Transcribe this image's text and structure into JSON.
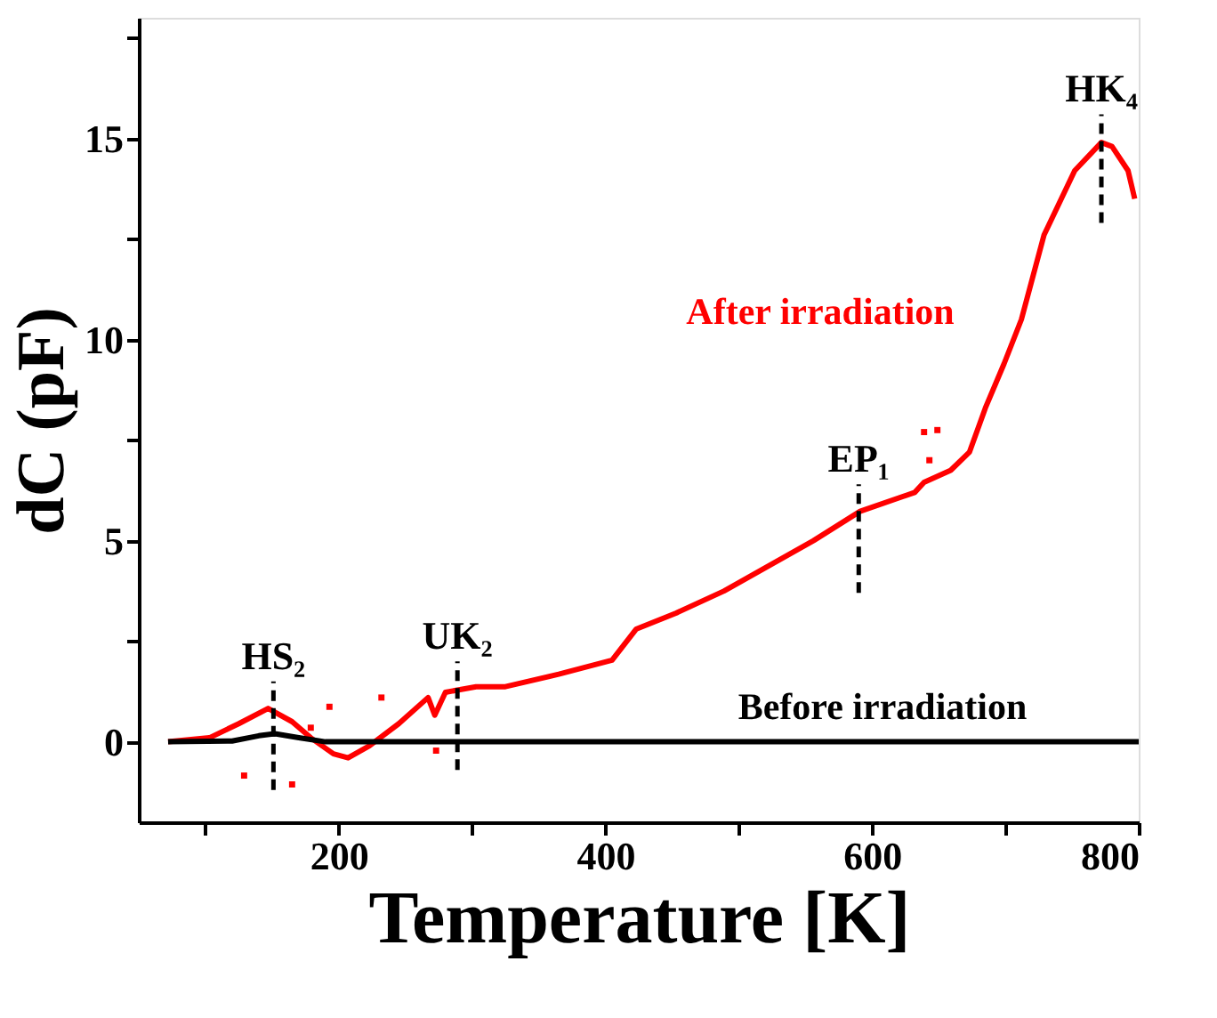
{
  "chart_data": {
    "type": "line",
    "xlabel": "Temperature [K]",
    "ylabel": "dC (pF)",
    "xlim": [
      50,
      800
    ],
    "xticks": [
      {
        "value": 100,
        "label": null
      },
      200,
      {
        "value": 300,
        "label": null
      },
      400,
      {
        "value": 500,
        "label": null
      },
      600,
      {
        "value": 700,
        "label": null
      },
      800
    ],
    "ylim": [
      -2,
      18
    ],
    "yticks": [
      0,
      {
        "value": 2.5,
        "label": null
      },
      5,
      {
        "value": 7.5,
        "label": null
      },
      10,
      {
        "value": 12.5,
        "label": null
      },
      15,
      {
        "value": 17.5,
        "label": null
      }
    ],
    "grid": false,
    "marker": "none",
    "line_style": "solid",
    "series": [
      {
        "name": "After irradiation",
        "color": "#ff0000",
        "x": [
          72,
          103,
          125,
          147,
          165,
          179,
          196,
          207,
          223,
          245,
          267,
          272,
          280,
          303,
          325,
          365,
          405,
          423,
          453,
          489,
          556,
          591,
          632,
          639,
          659,
          673,
          685,
          699,
          712,
          729,
          752,
          772,
          780,
          792,
          797
        ],
        "values": [
          0,
          0.1,
          0.45,
          0.83,
          0.5,
          0.1,
          -0.3,
          -0.4,
          -0.1,
          0.45,
          1.1,
          0.66,
          1.23,
          1.37,
          1.37,
          1.68,
          2.03,
          2.8,
          3.2,
          3.75,
          5.0,
          5.73,
          6.2,
          6.45,
          6.75,
          7.2,
          8.3,
          9.4,
          10.5,
          12.6,
          14.2,
          14.9,
          14.8,
          14.2,
          13.5
        ]
      },
      {
        "type": "scatter",
        "marker": "square",
        "color": "#ff0000",
        "x": [
          129,
          165,
          179,
          193,
          232,
          273,
          639,
          643,
          649
        ],
        "values": [
          -0.84,
          -1.06,
          0.35,
          0.87,
          1.1,
          -0.22,
          7.7,
          7.0,
          7.75
        ]
      },
      {
        "name": "Before irradiation",
        "color": "#000000",
        "x": [
          72,
          120,
          140,
          152,
          170,
          190,
          300,
          500,
          800
        ],
        "values": [
          0,
          0.02,
          0.15,
          0.2,
          0.1,
          0,
          0,
          0,
          0
        ]
      }
    ],
    "annotations": [
      {
        "text": "HS₂",
        "x": 151,
        "y": 0.8
      },
      {
        "text": "UK₂",
        "x": 289,
        "y": 1.3
      },
      {
        "text": "EP₁",
        "x": 590,
        "y": 5.7
      },
      {
        "text": "HK₄",
        "x": 772,
        "y": 14.9
      }
    ]
  }
}
